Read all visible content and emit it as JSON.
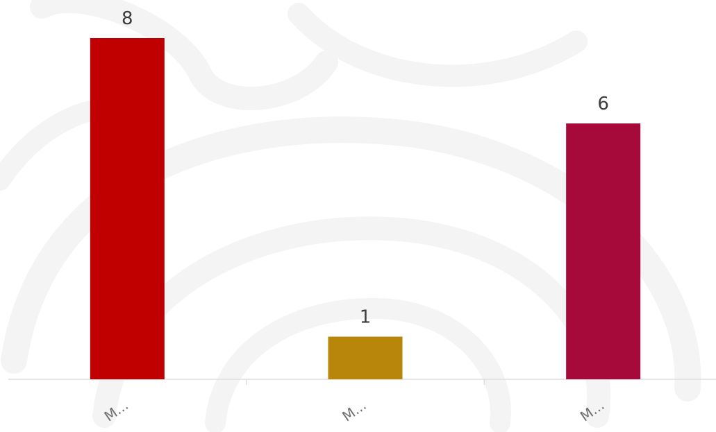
{
  "chart_data": {
    "type": "bar",
    "categories": [
      "M...",
      "M...",
      "M..."
    ],
    "values": [
      8,
      1,
      6
    ],
    "colors": [
      "#c00000",
      "#b8860b",
      "#a50a3a"
    ],
    "ylim": [
      0,
      8
    ],
    "grid": false,
    "data_labels": true,
    "title": "",
    "xlabel": "",
    "ylabel": ""
  },
  "style": {
    "axis_color": "#dddddd",
    "watermark_color": "#f4f4f4",
    "background": "#ffffff"
  }
}
